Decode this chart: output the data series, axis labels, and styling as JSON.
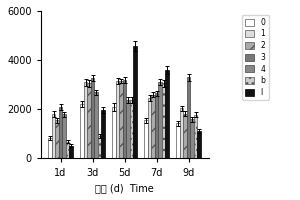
{
  "time_labels": [
    "1d",
    "3d",
    "5d",
    "7d",
    "9d"
  ],
  "series": [
    {
      "label": "0",
      "color": "#ffffff",
      "edgecolor": "#555555",
      "hatch": "",
      "values": [
        850,
        2200,
        2100,
        1550,
        1430
      ],
      "errors": [
        80,
        120,
        150,
        100,
        100
      ]
    },
    {
      "label": "1",
      "color": "#dddddd",
      "edgecolor": "#555555",
      "hatch": "",
      "values": [
        1800,
        3100,
        3150,
        2450,
        2050
      ],
      "errors": [
        120,
        150,
        120,
        130,
        100
      ]
    },
    {
      "label": "2",
      "color": "#aaaaaa",
      "edgecolor": "#555555",
      "hatch": "//",
      "values": [
        1550,
        3050,
        3150,
        2600,
        1820
      ],
      "errors": [
        100,
        130,
        100,
        110,
        100
      ]
    },
    {
      "label": "3",
      "color": "#777777",
      "edgecolor": "#444444",
      "hatch": "",
      "values": [
        2100,
        3280,
        3200,
        2650,
        3300
      ],
      "errors": [
        120,
        120,
        130,
        100,
        150
      ]
    },
    {
      "label": "4",
      "color": "#888888",
      "edgecolor": "#444444",
      "hatch": "",
      "values": [
        1800,
        2700,
        2380,
        3100,
        1600
      ],
      "errors": [
        100,
        100,
        120,
        120,
        100
      ]
    },
    {
      "label": "b",
      "color": "#cccccc",
      "edgecolor": "#555555",
      "hatch": "...",
      "values": [
        680,
        900,
        2380,
        3050,
        1780
      ],
      "errors": [
        60,
        80,
        120,
        130,
        100
      ]
    },
    {
      "label": "l",
      "color": "#111111",
      "edgecolor": "#000000",
      "hatch": "",
      "values": [
        520,
        1960,
        4580,
        3600,
        1120
      ],
      "errors": [
        60,
        130,
        200,
        150,
        80
      ]
    }
  ],
  "ylim": [
    0,
    6000
  ],
  "yticks": [
    0,
    2000,
    4000,
    6000
  ],
  "ylabel": "",
  "xlabel": "时间 (d)  Time",
  "bar_width": 0.11,
  "figsize": [
    3.0,
    2.0
  ],
  "dpi": 100
}
